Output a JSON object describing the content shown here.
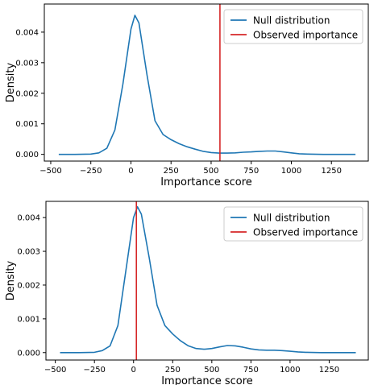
{
  "chart_data": [
    {
      "type": "line",
      "xlabel": "Importance score",
      "ylabel": "Density",
      "xlim": [
        -540,
        1480
      ],
      "ylim": [
        -0.00022,
        0.00492
      ],
      "xticks": [
        -500,
        -250,
        0,
        250,
        500,
        750,
        1000,
        1250
      ],
      "xtick_labels": [
        "−500",
        "−250",
        "0",
        "250",
        "500",
        "750",
        "1000",
        "1250"
      ],
      "yticks": [
        0,
        0.001,
        0.002,
        0.003,
        0.004
      ],
      "ytick_labels": [
        "0.000",
        "0.001",
        "0.002",
        "0.003",
        "0.004"
      ],
      "legend_position": "top-right",
      "series": [
        {
          "name": "Null distribution",
          "color": "#1f77b4",
          "x": [
            -450,
            -350,
            -250,
            -200,
            -150,
            -100,
            -50,
            0,
            25,
            50,
            100,
            150,
            200,
            250,
            300,
            350,
            400,
            450,
            500,
            550,
            600,
            650,
            700,
            750,
            800,
            850,
            900,
            950,
            1000,
            1050,
            1100,
            1200,
            1300,
            1400
          ],
          "y": [
            0,
            0,
            1e-05,
            5e-05,
            0.0002,
            0.0008,
            0.0023,
            0.0041,
            0.00455,
            0.0043,
            0.0026,
            0.0011,
            0.00065,
            0.00048,
            0.00035,
            0.00025,
            0.00017,
            0.0001,
            6e-05,
            4e-05,
            4e-05,
            5e-05,
            7e-05,
            8e-05,
            0.0001,
            0.00011,
            0.00011,
            8e-05,
            5e-05,
            2e-05,
            1e-05,
            0,
            0,
            0
          ]
        },
        {
          "name": "Observed importance",
          "color": "#d62728",
          "observed_x": 555
        }
      ]
    },
    {
      "type": "line",
      "xlabel": "Importance score",
      "ylabel": "Density",
      "xlim": [
        -560,
        1500
      ],
      "ylim": [
        -0.00022,
        0.00448
      ],
      "xticks": [
        -500,
        -250,
        0,
        250,
        500,
        750,
        1000,
        1250
      ],
      "xtick_labels": [
        "−500",
        "−250",
        "0",
        "250",
        "500",
        "750",
        "1000",
        "1250"
      ],
      "yticks": [
        0,
        0.001,
        0.002,
        0.003,
        0.004
      ],
      "ytick_labels": [
        "0.000",
        "0.001",
        "0.002",
        "0.003",
        "0.004"
      ],
      "legend_position": "top-right",
      "series": [
        {
          "name": "Null distribution",
          "color": "#1f77b4",
          "x": [
            -470,
            -350,
            -250,
            -200,
            -150,
            -100,
            -50,
            0,
            25,
            50,
            100,
            150,
            200,
            250,
            300,
            350,
            400,
            450,
            500,
            550,
            600,
            650,
            700,
            750,
            800,
            850,
            900,
            950,
            1000,
            1050,
            1100,
            1200,
            1300,
            1420
          ],
          "y": [
            0,
            0,
            1e-05,
            6e-05,
            0.0002,
            0.0008,
            0.0024,
            0.004,
            0.00432,
            0.0041,
            0.0028,
            0.0014,
            0.0008,
            0.00055,
            0.00035,
            0.0002,
            0.00012,
            0.0001,
            0.00012,
            0.00017,
            0.00021,
            0.0002,
            0.00016,
            0.00011,
            8e-05,
            7e-05,
            7e-05,
            6e-05,
            4e-05,
            2e-05,
            1e-05,
            0,
            0,
            0
          ]
        },
        {
          "name": "Observed importance",
          "color": "#d62728",
          "observed_x": 18
        }
      ]
    }
  ]
}
